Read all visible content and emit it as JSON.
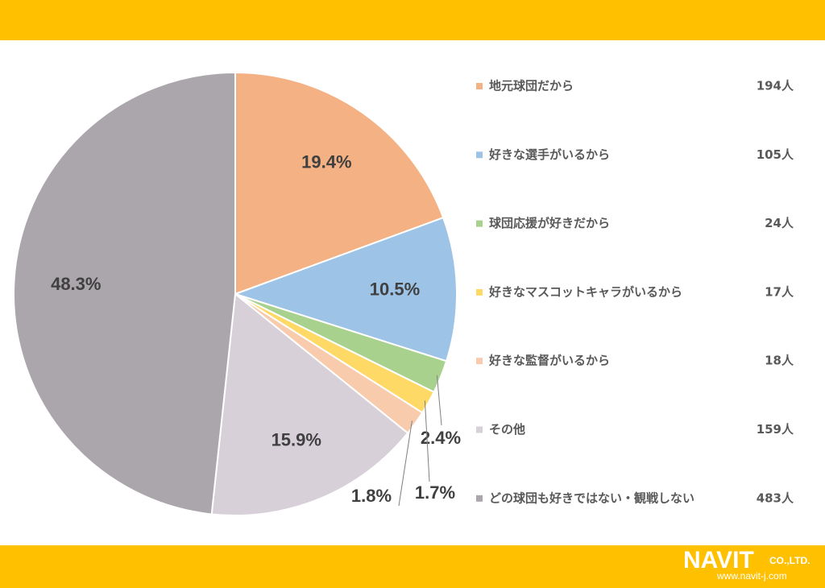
{
  "chart_data": {
    "type": "pie",
    "categories": [
      "地元球団だから",
      "好きな選手がいるから",
      "球団応援が好きだから",
      "好きなマスコットキャラがいるから",
      "好きな監督がいるから",
      "その他",
      "どの球団も好きではない・観戦しない"
    ],
    "values": [
      19.4,
      10.5,
      2.4,
      1.7,
      1.8,
      15.9,
      48.3
    ],
    "value_labels": [
      "19.4%",
      "10.5%",
      "2.4%",
      "1.7%",
      "1.8%",
      "15.9%",
      "48.3%"
    ],
    "legend_counts": [
      "194人",
      "105人",
      "24人",
      "17人",
      "18人",
      "159人",
      "483人"
    ],
    "colors": [
      "#f4b183",
      "#9dc3e6",
      "#a9d18e",
      "#ffd966",
      "#f8cbad",
      "#d8d0d8",
      "#aba6ab"
    ]
  },
  "footer": {
    "logo": "NAVIT",
    "company": "CO.,LTD.",
    "url": "www.navit-j.com"
  }
}
